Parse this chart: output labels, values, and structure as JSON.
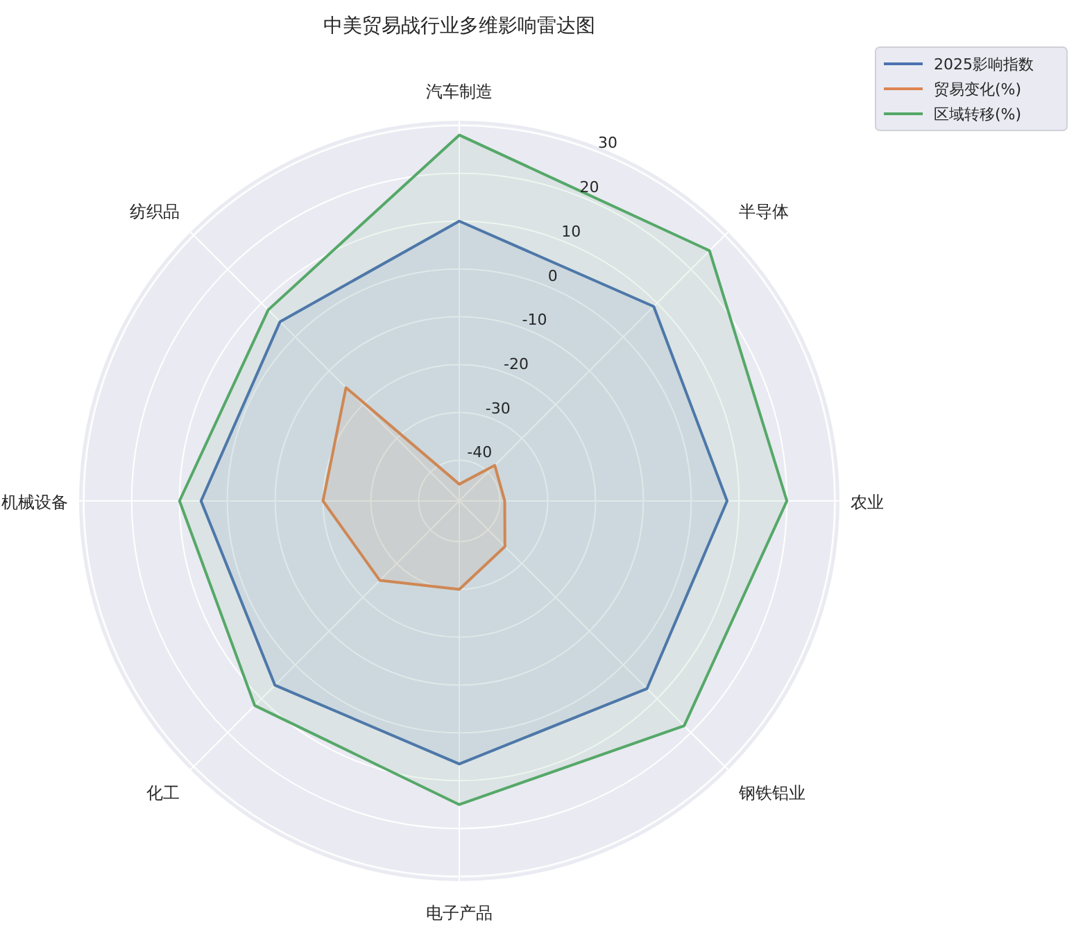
{
  "chart_data": {
    "type": "radar",
    "title": "中美贸易战行业多维影响雷达图",
    "categories": [
      "汽车制造",
      "半导体",
      "农业",
      "钢铁铝业",
      "电子产品",
      "化工",
      "机械设备",
      "纺织品"
    ],
    "series": [
      {
        "name": "2025影响指数",
        "color": "#4c72b0",
        "values": [
          10,
          9,
          7.5,
          7,
          6.5,
          6,
          5.5,
          4.5
        ]
      },
      {
        "name": "贸易变化(%)",
        "color": "#dd8452",
        "values": [
          -45,
          -38,
          -39,
          -35,
          -30,
          -25,
          -20,
          -15
        ]
      },
      {
        "name": "区域转移(%)",
        "color": "#55a868",
        "values": [
          28,
          25.5,
          20,
          18,
          15,
          12,
          10,
          8
        ]
      }
    ],
    "ylim": [
      -48.5,
      31
    ],
    "yticks": [
      -40,
      -30,
      -20,
      -10,
      0,
      10,
      20,
      30
    ],
    "grid": true,
    "legend": "top right"
  }
}
